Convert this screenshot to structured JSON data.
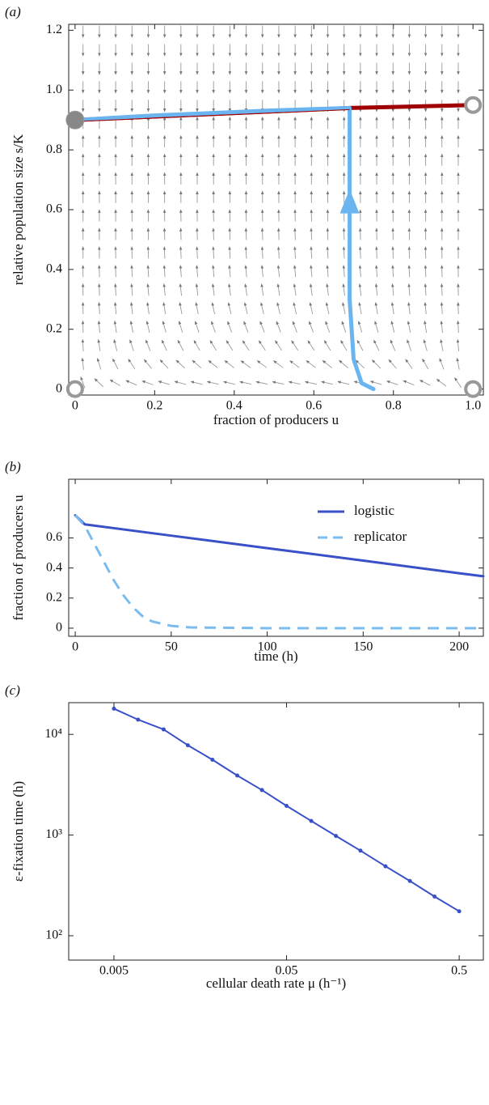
{
  "chart_data": [
    {
      "type": "phase",
      "panel_label": "(a)",
      "xlabel": "fraction of producers u",
      "ylabel": "relative population size s/K",
      "xlim": [
        -0.016,
        1.026
      ],
      "ylim": [
        -0.02,
        1.22
      ],
      "xticks": [
        0,
        0.2,
        0.4,
        0.6,
        0.8,
        {
          "value": 1,
          "label": "1.0"
        }
      ],
      "yticks": [
        0,
        0.2,
        0.4,
        0.6,
        0.8,
        {
          "value": 1,
          "label": "1.0"
        },
        1.2
      ],
      "series": [
        {
          "color": "#a00000",
          "x": [
            0,
            0.69,
            1
          ],
          "values": [
            0.9,
            0.94,
            0.95
          ]
        },
        {
          "color": "#6ab4f0",
          "x": [
            0.75,
            0.72,
            0.7,
            0.69,
            0.69,
            0.5,
            0.2,
            0
          ],
          "values": [
            0,
            0.02,
            0.1,
            0.3,
            0.94,
            0.932,
            0.915,
            0.9
          ]
        }
      ],
      "points": {
        "x": [
          0,
          1,
          0,
          1
        ],
        "values": [
          0.9,
          0.95,
          0,
          0
        ],
        "filled": [
          true,
          false,
          false,
          false
        ]
      }
    },
    {
      "type": "line",
      "panel_label": "(b)",
      "xlabel": "time (h)",
      "ylabel": "fraction of producers u",
      "xlim": [
        -3.4,
        212.6
      ],
      "ylim": [
        -0.054,
        0.99
      ],
      "xticks": [
        0,
        50,
        100,
        150,
        200
      ],
      "yticks": [
        0,
        0.2,
        0.4,
        0.6
      ],
      "series": [
        {
          "name": "logistic",
          "color": "#3a50c8",
          "dashed": false,
          "x": [
            0,
            5,
            50,
            100,
            150,
            200,
            212.6
          ],
          "values": [
            0.75,
            0.69,
            0.615,
            0.532,
            0.449,
            0.365,
            0.345
          ]
        },
        {
          "name": "replicator",
          "color": "#7abcee",
          "dashed": true,
          "x": [
            0,
            5,
            10,
            15,
            20,
            25,
            30,
            35,
            40,
            50,
            60,
            100,
            212.6
          ],
          "values": [
            0.75,
            0.68,
            0.56,
            0.44,
            0.32,
            0.22,
            0.14,
            0.08,
            0.045,
            0.015,
            0.005,
            0,
            0
          ]
        }
      ]
    },
    {
      "type": "line-points",
      "panel_label": "(c)",
      "xlabel": "cellular death rate μ (h⁻¹)",
      "ylabel": "ε-fixation time (h)",
      "xlog": true,
      "ylog": true,
      "xlim": [
        0.002735,
        0.69
      ],
      "ylim": [
        57.3,
        20650
      ],
      "xticks": [
        0.005,
        0.05,
        0.5
      ],
      "yticks": [
        {
          "value": 100,
          "label": "10²"
        },
        {
          "value": 1000,
          "label": "10³"
        },
        {
          "value": 10000,
          "label": "10⁴"
        }
      ],
      "series": [
        {
          "color": "#3a50c8",
          "x": [
            0.005,
            0.0069,
            0.0097,
            0.0134,
            0.0186,
            0.0259,
            0.036,
            0.05,
            0.0695,
            0.0966,
            0.134,
            0.187,
            0.259,
            0.36,
            0.5
          ],
          "values": [
            18000,
            14000,
            11200,
            7800,
            5600,
            3900,
            2800,
            1950,
            1380,
            980,
            700,
            490,
            350,
            245,
            175
          ]
        }
      ]
    }
  ]
}
